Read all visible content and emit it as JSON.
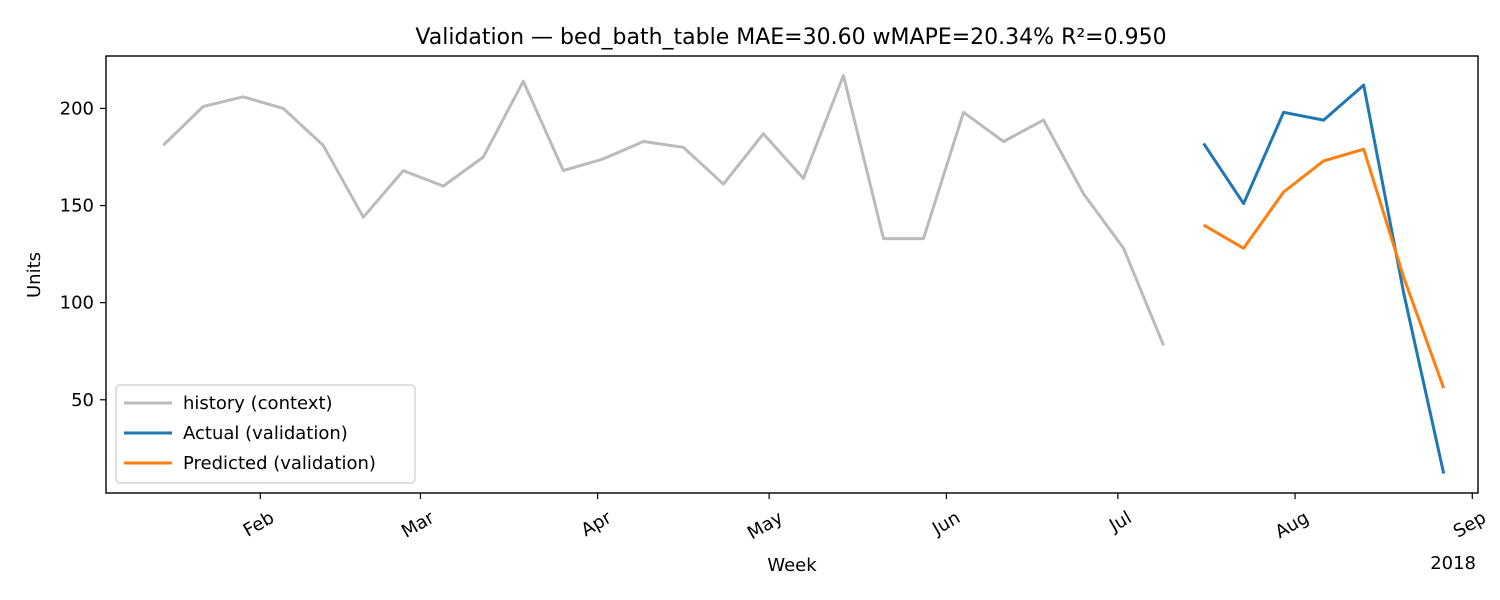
{
  "chart_data": {
    "type": "line",
    "title": "Validation — bed_bath_table   MAE=30.60  wMAPE=20.34%  R²=0.950",
    "xlabel": "Week",
    "ylabel": "Units",
    "xlim": [
      "2018-01-05",
      "2018-09-02"
    ],
    "ylim": [
      2,
      227
    ],
    "x_ticks": [
      {
        "date": "2018-02-01",
        "label": "Feb"
      },
      {
        "date": "2018-03-01",
        "label": "Mar"
      },
      {
        "date": "2018-04-01",
        "label": "Apr"
      },
      {
        "date": "2018-05-01",
        "label": "May"
      },
      {
        "date": "2018-06-01",
        "label": "Jun"
      },
      {
        "date": "2018-07-01",
        "label": "Jul"
      },
      {
        "date": "2018-08-01",
        "label": "Aug"
      },
      {
        "date": "2018-09-01",
        "label": "Sep"
      }
    ],
    "x_offset_label": "2018",
    "y_ticks": [
      50,
      100,
      150,
      200
    ],
    "grid": false,
    "legend_position": "lower-left",
    "series": [
      {
        "name": "history (context)",
        "color": "#bbbbbb",
        "points": [
          {
            "x": "2018-01-15",
            "y": 181
          },
          {
            "x": "2018-01-22",
            "y": 201
          },
          {
            "x": "2018-01-29",
            "y": 206
          },
          {
            "x": "2018-02-05",
            "y": 200
          },
          {
            "x": "2018-02-12",
            "y": 181
          },
          {
            "x": "2018-02-19",
            "y": 144
          },
          {
            "x": "2018-02-26",
            "y": 168
          },
          {
            "x": "2018-03-05",
            "y": 160
          },
          {
            "x": "2018-03-12",
            "y": 175
          },
          {
            "x": "2018-03-19",
            "y": 214
          },
          {
            "x": "2018-03-26",
            "y": 168
          },
          {
            "x": "2018-04-02",
            "y": 174
          },
          {
            "x": "2018-04-09",
            "y": 183
          },
          {
            "x": "2018-04-16",
            "y": 180
          },
          {
            "x": "2018-04-23",
            "y": 161
          },
          {
            "x": "2018-04-30",
            "y": 187
          },
          {
            "x": "2018-05-07",
            "y": 164
          },
          {
            "x": "2018-05-14",
            "y": 217
          },
          {
            "x": "2018-05-21",
            "y": 133
          },
          {
            "x": "2018-05-28",
            "y": 133
          },
          {
            "x": "2018-06-04",
            "y": 198
          },
          {
            "x": "2018-06-11",
            "y": 183
          },
          {
            "x": "2018-06-18",
            "y": 194
          },
          {
            "x": "2018-06-25",
            "y": 156
          },
          {
            "x": "2018-07-02",
            "y": 128
          },
          {
            "x": "2018-07-09",
            "y": 78
          }
        ]
      },
      {
        "name": "Actual (validation)",
        "color": "#1f77b4",
        "points": [
          {
            "x": "2018-07-16",
            "y": 182
          },
          {
            "x": "2018-07-23",
            "y": 151
          },
          {
            "x": "2018-07-30",
            "y": 198
          },
          {
            "x": "2018-08-06",
            "y": 194
          },
          {
            "x": "2018-08-13",
            "y": 212
          },
          {
            "x": "2018-08-20",
            "y": 105
          },
          {
            "x": "2018-08-27",
            "y": 12
          }
        ]
      },
      {
        "name": "Predicted (validation)",
        "color": "#ff7f0e",
        "points": [
          {
            "x": "2018-07-16",
            "y": 140
          },
          {
            "x": "2018-07-23",
            "y": 128
          },
          {
            "x": "2018-07-30",
            "y": 157
          },
          {
            "x": "2018-08-06",
            "y": 173
          },
          {
            "x": "2018-08-13",
            "y": 179
          },
          {
            "x": "2018-08-20",
            "y": 113
          },
          {
            "x": "2018-08-27",
            "y": 56
          }
        ]
      }
    ]
  }
}
